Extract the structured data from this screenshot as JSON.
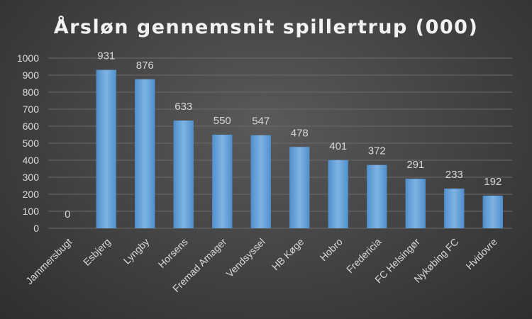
{
  "chart_data": {
    "type": "bar",
    "title": "Årsløn gennemsnit spillertrup (000)",
    "categories": [
      "Jammersbugt",
      "Esbjerg",
      "Lyngby",
      "Horsens",
      "Fremad Amager",
      "Vendsyssel",
      "HB Køge",
      "Hobro",
      "Fredericia",
      "FC Helsingør",
      "Nykøbing FC",
      "Hvidovre"
    ],
    "values": [
      0,
      931,
      876,
      633,
      550,
      547,
      478,
      401,
      372,
      291,
      233,
      192
    ],
    "ylim": [
      0,
      1000
    ],
    "yticks": [
      0,
      100,
      200,
      300,
      400,
      500,
      600,
      700,
      800,
      900,
      1000
    ],
    "grid": true,
    "bar_color": "#5b9bd5",
    "bar_color_light": "#7fb3e3"
  }
}
